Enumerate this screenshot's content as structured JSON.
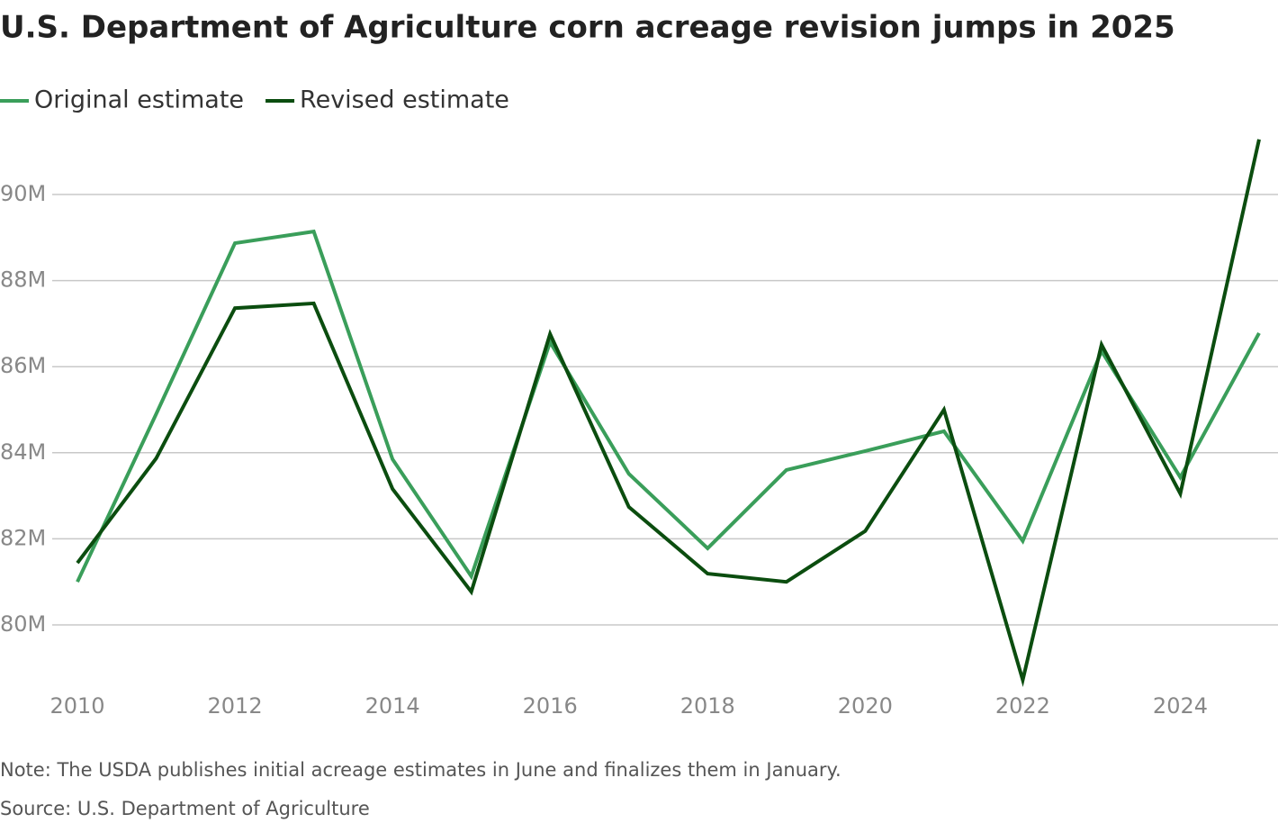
{
  "chart_data": {
    "type": "line",
    "title": "U.S. Department of Agriculture corn acreage revision jumps in 2025",
    "note": "Note: The USDA publishes initial acreage estimates in June and finalizes them in January.",
    "source": "Source: U.S. Department of Agriculture",
    "x": [
      2010,
      2011,
      2012,
      2013,
      2014,
      2015,
      2016,
      2017,
      2018,
      2019,
      2020,
      2021,
      2022,
      2023,
      2024,
      2025
    ],
    "series": [
      {
        "name": "Original estimate",
        "color": "#3a9e5a",
        "values": [
          81000000,
          84900000,
          88870000,
          89140000,
          83850000,
          81130000,
          86570000,
          83510000,
          81780000,
          83600000,
          84040000,
          84500000,
          81950000,
          86360000,
          83430000,
          86780000
        ]
      },
      {
        "name": "Revised estimate",
        "color": "#0b4d0f",
        "values": [
          81440000,
          83870000,
          87360000,
          87470000,
          83160000,
          80770000,
          86760000,
          82740000,
          81190000,
          81000000,
          82180000,
          85000000,
          78720000,
          86510000,
          83050000,
          91280000
        ]
      }
    ],
    "xlim": [
      2010,
      2025
    ],
    "xticks": [
      2010,
      2012,
      2014,
      2016,
      2018,
      2020,
      2022,
      2024
    ],
    "ylim": [
      78500000,
      91500000
    ],
    "yticks": [
      {
        "value": 80000000,
        "label": "80M"
      },
      {
        "value": 82000000,
        "label": "82M"
      },
      {
        "value": 84000000,
        "label": "84M"
      },
      {
        "value": 86000000,
        "label": "86M"
      },
      {
        "value": 88000000,
        "label": "88M"
      },
      {
        "value": 90000000,
        "label": "90M"
      }
    ],
    "grid": true,
    "legend": "top-left"
  }
}
